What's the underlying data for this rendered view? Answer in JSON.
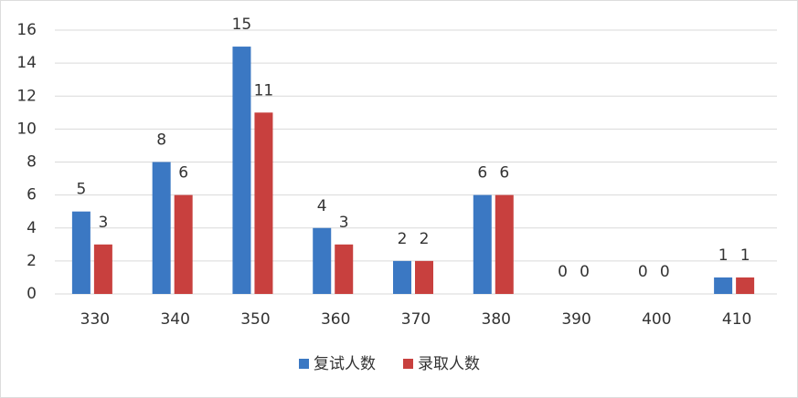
{
  "chart_data": {
    "type": "bar",
    "categories": [
      "330",
      "340",
      "350",
      "360",
      "370",
      "380",
      "390",
      "400",
      "410"
    ],
    "series": [
      {
        "name": "复试人数",
        "color": "#3b78c3",
        "values": [
          5,
          8,
          15,
          4,
          2,
          6,
          0,
          0,
          1
        ]
      },
      {
        "name": "录取人数",
        "color": "#c8403e",
        "values": [
          3,
          6,
          11,
          3,
          2,
          6,
          0,
          0,
          1
        ]
      }
    ],
    "ylim": [
      0,
      16
    ],
    "yticks": [
      0,
      2,
      4,
      6,
      8,
      10,
      12,
      14,
      16
    ],
    "grid": true,
    "legend": "bottom"
  }
}
